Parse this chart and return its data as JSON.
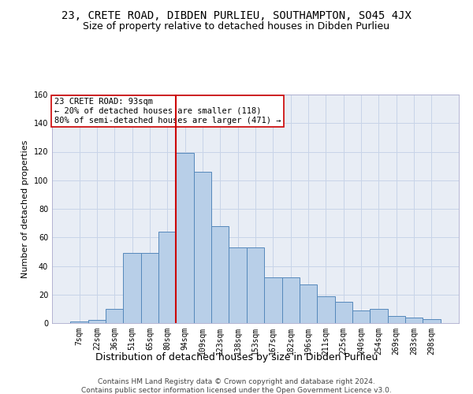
{
  "title": "23, CRETE ROAD, DIBDEN PURLIEU, SOUTHAMPTON, SO45 4JX",
  "subtitle": "Size of property relative to detached houses in Dibden Purlieu",
  "xlabel": "Distribution of detached houses by size in Dibden Purlieu",
  "ylabel": "Number of detached properties",
  "footer_line1": "Contains HM Land Registry data © Crown copyright and database right 2024.",
  "footer_line2": "Contains public sector information licensed under the Open Government Licence v3.0.",
  "bar_labels": [
    "7sqm",
    "22sqm",
    "36sqm",
    "51sqm",
    "65sqm",
    "80sqm",
    "94sqm",
    "109sqm",
    "123sqm",
    "138sqm",
    "153sqm",
    "167sqm",
    "182sqm",
    "196sqm",
    "211sqm",
    "225sqm",
    "240sqm",
    "254sqm",
    "269sqm",
    "283sqm",
    "298sqm"
  ],
  "bar_values": [
    1,
    2,
    10,
    49,
    49,
    64,
    119,
    106,
    68,
    53,
    53,
    32,
    32,
    27,
    19,
    15,
    9,
    10,
    5,
    4,
    3
  ],
  "bar_color": "#b8cfe8",
  "bar_edge_color": "#5588bb",
  "vline_color": "#cc0000",
  "annotation_text": "23 CRETE ROAD: 93sqm\n← 20% of detached houses are smaller (118)\n80% of semi-detached houses are larger (471) →",
  "annotation_box_color": "#ffffff",
  "annotation_box_edge": "#cc0000",
  "ylim": [
    0,
    160
  ],
  "yticks": [
    0,
    20,
    40,
    60,
    80,
    100,
    120,
    140,
    160
  ],
  "grid_color": "#c8d4e8",
  "background_color": "#e8edf5",
  "title_fontsize": 10,
  "subtitle_fontsize": 9,
  "xlabel_fontsize": 9,
  "ylabel_fontsize": 8,
  "tick_fontsize": 7,
  "annotation_fontsize": 7.5,
  "footer_fontsize": 6.5
}
